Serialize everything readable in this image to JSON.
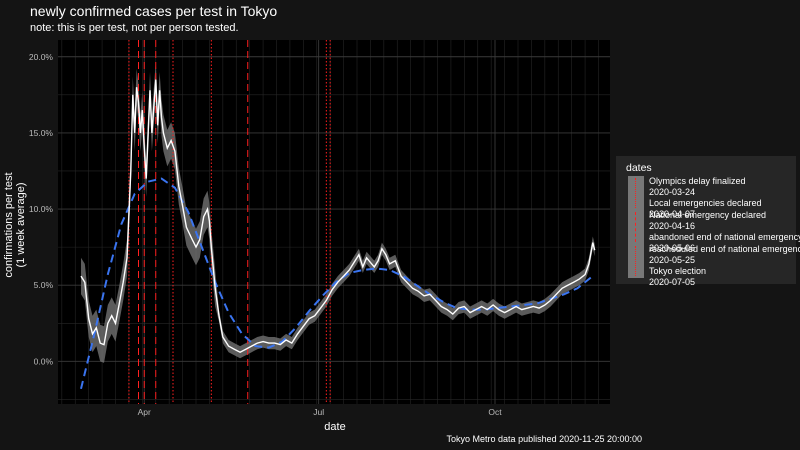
{
  "title": "newly confirmed cases per test in Tokyo",
  "subtitle": "note: this is per test, not per person tested.",
  "caption": "Tokyo Metro data published 2020-11-25 20:00:00",
  "legend": {
    "title": "dates",
    "entries": [
      {
        "event": "Olympics delay finalized",
        "date": "2020-03-24",
        "linetype": "dotted"
      },
      {
        "event": "Local emergencies declared",
        "date": "2020-04-07",
        "linetype": "dashed"
      },
      {
        "event": "National emergency declared",
        "date": "2020-04-16",
        "linetype": "dashed"
      },
      {
        "event": "abandoned end of national emergency",
        "date": "2020-05-06",
        "linetype": "dotted"
      },
      {
        "event": "rescheduled end of national emergency",
        "date": "2020-05-25",
        "linetype": "dashed"
      },
      {
        "event": "Tokyo election",
        "date": "2020-07-05",
        "linetype": "dotted"
      }
    ]
  },
  "colors": {
    "background": "#141414",
    "panel": "#000000",
    "grid": "#3a3a3a",
    "observed_line": "#ffffff",
    "ci_band": "#7a7a7a",
    "trend_line": "#3a74f0",
    "event_lines": "#ff2020"
  },
  "chart_data": {
    "type": "line",
    "xlabel": "date",
    "ylabel": "confirmations per test\n(1 week average)",
    "x_ticks": [
      {
        "label": "Apr",
        "date": "2020-04-01"
      },
      {
        "label": "Jul",
        "date": "2020-07-01"
      },
      {
        "label": "Oct",
        "date": "2020-10-01"
      }
    ],
    "y_ticks": [
      0,
      0.05,
      0.1,
      0.15,
      0.2
    ],
    "y_tick_labels": [
      "0.0%",
      "5.0%",
      "10.0%",
      "15.0%",
      "20.0%"
    ],
    "xlim": [
      "2020-02-16",
      "2020-11-30"
    ],
    "ylim": [
      -0.028,
      0.211
    ],
    "grid": true,
    "legend_position": "right",
    "event_dates": [
      "2020-03-24",
      "2020-03-29",
      "2020-04-01",
      "2020-04-07",
      "2020-04-16",
      "2020-05-06",
      "2020-05-25",
      "2020-07-05",
      "2020-07-07"
    ],
    "series": [
      {
        "kind": "observed",
        "points": [
          [
            "2020-02-28",
            0.056
          ],
          [
            "2020-03-01",
            0.052
          ],
          [
            "2020-03-03",
            0.028
          ],
          [
            "2020-03-05",
            0.018
          ],
          [
            "2020-03-07",
            0.022
          ],
          [
            "2020-03-09",
            0.012
          ],
          [
            "2020-03-11",
            0.011
          ],
          [
            "2020-03-13",
            0.025
          ],
          [
            "2020-03-15",
            0.03
          ],
          [
            "2020-03-17",
            0.025
          ],
          [
            "2020-03-19",
            0.038
          ],
          [
            "2020-03-21",
            0.052
          ],
          [
            "2020-03-23",
            0.068
          ],
          [
            "2020-03-25",
            0.125
          ],
          [
            "2020-03-26",
            0.175
          ],
          [
            "2020-03-27",
            0.15
          ],
          [
            "2020-03-28",
            0.18
          ],
          [
            "2020-03-29",
            0.17
          ],
          [
            "2020-03-30",
            0.15
          ],
          [
            "2020-03-31",
            0.165
          ],
          [
            "2020-04-01",
            0.14
          ],
          [
            "2020-04-02",
            0.12
          ],
          [
            "2020-04-04",
            0.178
          ],
          [
            "2020-04-05",
            0.15
          ],
          [
            "2020-04-07",
            0.185
          ],
          [
            "2020-04-08",
            0.155
          ],
          [
            "2020-04-09",
            0.178
          ],
          [
            "2020-04-10",
            0.16
          ],
          [
            "2020-04-11",
            0.15
          ],
          [
            "2020-04-13",
            0.14
          ],
          [
            "2020-04-15",
            0.145
          ],
          [
            "2020-04-17",
            0.138
          ],
          [
            "2020-04-19",
            0.115
          ],
          [
            "2020-04-21",
            0.102
          ],
          [
            "2020-04-23",
            0.088
          ],
          [
            "2020-04-26",
            0.08
          ],
          [
            "2020-04-28",
            0.075
          ],
          [
            "2020-04-30",
            0.08
          ],
          [
            "2020-05-02",
            0.095
          ],
          [
            "2020-05-04",
            0.1
          ],
          [
            "2020-05-05",
            0.092
          ],
          [
            "2020-05-06",
            0.075
          ],
          [
            "2020-05-08",
            0.048
          ],
          [
            "2020-05-10",
            0.03
          ],
          [
            "2020-05-12",
            0.016
          ],
          [
            "2020-05-15",
            0.01
          ],
          [
            "2020-05-18",
            0.008
          ],
          [
            "2020-05-21",
            0.006
          ],
          [
            "2020-05-24",
            0.008
          ],
          [
            "2020-05-27",
            0.01
          ],
          [
            "2020-05-30",
            0.012
          ],
          [
            "2020-06-02",
            0.013
          ],
          [
            "2020-06-05",
            0.012
          ],
          [
            "2020-06-08",
            0.012
          ],
          [
            "2020-06-11",
            0.011
          ],
          [
            "2020-06-14",
            0.014
          ],
          [
            "2020-06-17",
            0.012
          ],
          [
            "2020-06-20",
            0.018
          ],
          [
            "2020-06-23",
            0.023
          ],
          [
            "2020-06-26",
            0.028
          ],
          [
            "2020-06-29",
            0.03
          ],
          [
            "2020-07-02",
            0.035
          ],
          [
            "2020-07-05",
            0.04
          ],
          [
            "2020-07-08",
            0.047
          ],
          [
            "2020-07-11",
            0.052
          ],
          [
            "2020-07-14",
            0.056
          ],
          [
            "2020-07-17",
            0.06
          ],
          [
            "2020-07-20",
            0.066
          ],
          [
            "2020-07-22",
            0.07
          ],
          [
            "2020-07-24",
            0.062
          ],
          [
            "2020-07-26",
            0.068
          ],
          [
            "2020-07-28",
            0.065
          ],
          [
            "2020-07-30",
            0.062
          ],
          [
            "2020-08-01",
            0.066
          ],
          [
            "2020-08-03",
            0.074
          ],
          [
            "2020-08-05",
            0.07
          ],
          [
            "2020-08-07",
            0.064
          ],
          [
            "2020-08-10",
            0.066
          ],
          [
            "2020-08-13",
            0.056
          ],
          [
            "2020-08-16",
            0.052
          ],
          [
            "2020-08-19",
            0.048
          ],
          [
            "2020-08-22",
            0.046
          ],
          [
            "2020-08-25",
            0.043
          ],
          [
            "2020-08-28",
            0.044
          ],
          [
            "2020-08-31",
            0.04
          ],
          [
            "2020-09-03",
            0.036
          ],
          [
            "2020-09-06",
            0.034
          ],
          [
            "2020-09-09",
            0.031
          ],
          [
            "2020-09-12",
            0.035
          ],
          [
            "2020-09-15",
            0.036
          ],
          [
            "2020-09-18",
            0.032
          ],
          [
            "2020-09-21",
            0.034
          ],
          [
            "2020-09-24",
            0.036
          ],
          [
            "2020-09-27",
            0.034
          ],
          [
            "2020-09-30",
            0.037
          ],
          [
            "2020-10-03",
            0.034
          ],
          [
            "2020-10-06",
            0.032
          ],
          [
            "2020-10-09",
            0.034
          ],
          [
            "2020-10-12",
            0.036
          ],
          [
            "2020-10-15",
            0.034
          ],
          [
            "2020-10-18",
            0.035
          ],
          [
            "2020-10-21",
            0.036
          ],
          [
            "2020-10-24",
            0.035
          ],
          [
            "2020-10-27",
            0.037
          ],
          [
            "2020-10-30",
            0.04
          ],
          [
            "2020-11-02",
            0.044
          ],
          [
            "2020-11-05",
            0.048
          ],
          [
            "2020-11-08",
            0.05
          ],
          [
            "2020-11-11",
            0.052
          ],
          [
            "2020-11-14",
            0.054
          ],
          [
            "2020-11-17",
            0.057
          ],
          [
            "2020-11-19",
            0.064
          ],
          [
            "2020-11-21",
            0.078
          ],
          [
            "2020-11-22",
            0.073
          ]
        ]
      },
      {
        "kind": "trend",
        "points": [
          [
            "2020-02-28",
            -0.018
          ],
          [
            "2020-03-06",
            0.018
          ],
          [
            "2020-03-13",
            0.057
          ],
          [
            "2020-03-20",
            0.09
          ],
          [
            "2020-03-27",
            0.11
          ],
          [
            "2020-04-03",
            0.118
          ],
          [
            "2020-04-10",
            0.12
          ],
          [
            "2020-04-17",
            0.114
          ],
          [
            "2020-04-24",
            0.098
          ],
          [
            "2020-05-01",
            0.075
          ],
          [
            "2020-05-08",
            0.052
          ],
          [
            "2020-05-15",
            0.032
          ],
          [
            "2020-05-22",
            0.018
          ],
          [
            "2020-05-29",
            0.01
          ],
          [
            "2020-06-05",
            0.009
          ],
          [
            "2020-06-12",
            0.013
          ],
          [
            "2020-06-19",
            0.022
          ],
          [
            "2020-06-26",
            0.033
          ],
          [
            "2020-07-03",
            0.043
          ],
          [
            "2020-07-10",
            0.052
          ],
          [
            "2020-07-17",
            0.058
          ],
          [
            "2020-07-24",
            0.06
          ],
          [
            "2020-07-31",
            0.061
          ],
          [
            "2020-08-07",
            0.06
          ],
          [
            "2020-08-14",
            0.056
          ],
          [
            "2020-08-21",
            0.05
          ],
          [
            "2020-08-28",
            0.044
          ],
          [
            "2020-09-04",
            0.039
          ],
          [
            "2020-09-11",
            0.035
          ],
          [
            "2020-09-18",
            0.034
          ],
          [
            "2020-09-25",
            0.034
          ],
          [
            "2020-10-02",
            0.035
          ],
          [
            "2020-10-09",
            0.036
          ],
          [
            "2020-10-16",
            0.037
          ],
          [
            "2020-10-23",
            0.038
          ],
          [
            "2020-10-30",
            0.041
          ],
          [
            "2020-11-06",
            0.044
          ],
          [
            "2020-11-13",
            0.048
          ],
          [
            "2020-11-20",
            0.055
          ]
        ]
      }
    ]
  }
}
